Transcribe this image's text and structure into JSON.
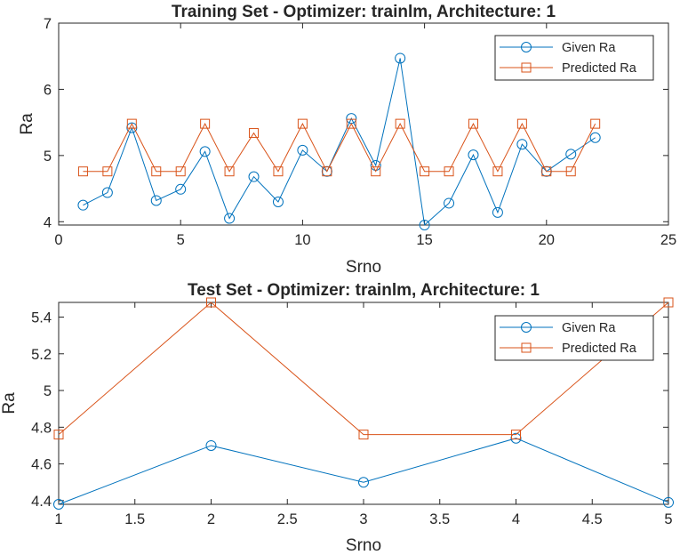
{
  "colors": {
    "given": "#0072BD",
    "predicted": "#D95319",
    "axis": "#262626"
  },
  "chart_data": [
    {
      "type": "line",
      "title": "Training Set - Optimizer: trainlm, Architecture: 1",
      "xlabel": "Srno",
      "ylabel": "Ra",
      "xlim": [
        0,
        25
      ],
      "ylim": [
        3.95,
        7
      ],
      "xticks": [
        0,
        5,
        10,
        15,
        20,
        25
      ],
      "yticks": [
        4,
        5,
        6,
        7
      ],
      "x": [
        1,
        2,
        3,
        4,
        5,
        6,
        7,
        8,
        9,
        10,
        11,
        12,
        13,
        14,
        15,
        16,
        17,
        18,
        19,
        20,
        21,
        22
      ],
      "legend_position": "top-right",
      "series": [
        {
          "name": "Given Ra",
          "marker": "circle",
          "values": [
            4.25,
            4.44,
            5.42,
            4.32,
            4.49,
            5.06,
            4.05,
            4.68,
            4.3,
            5.08,
            4.76,
            5.56,
            4.85,
            6.47,
            3.95,
            4.28,
            5.01,
            4.14,
            5.17,
            4.76,
            5.02,
            5.27
          ]
        },
        {
          "name": "Predicted Ra",
          "marker": "square",
          "values": [
            4.76,
            4.76,
            5.48,
            4.76,
            4.76,
            5.48,
            4.76,
            5.34,
            4.76,
            5.48,
            4.76,
            5.48,
            4.76,
            5.48,
            4.76,
            4.76,
            5.48,
            4.76,
            5.48,
            4.76,
            4.76,
            5.48
          ]
        }
      ]
    },
    {
      "type": "line",
      "title": "Test Set - Optimizer: trainlm, Architecture: 1",
      "xlabel": "Srno",
      "ylabel": "Ra",
      "xlim": [
        1,
        5
      ],
      "ylim": [
        4.38,
        5.48
      ],
      "xticks": [
        1,
        1.5,
        2,
        2.5,
        3,
        3.5,
        4,
        4.5,
        5
      ],
      "yticks": [
        4.4,
        4.6,
        4.8,
        5,
        5.2,
        5.4
      ],
      "x": [
        1,
        2,
        3,
        4,
        5
      ],
      "legend_position": "top-right",
      "series": [
        {
          "name": "Given Ra",
          "marker": "circle",
          "values": [
            4.38,
            4.7,
            4.5,
            4.74,
            4.39
          ]
        },
        {
          "name": "Predicted Ra",
          "marker": "square",
          "values": [
            4.76,
            5.48,
            4.76,
            4.76,
            5.48
          ]
        }
      ]
    }
  ]
}
